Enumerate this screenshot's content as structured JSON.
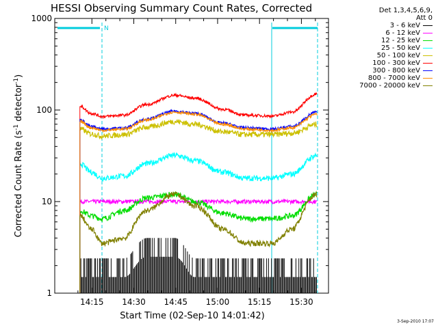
{
  "chart_data": {
    "type": "line",
    "title": "HESSI Observing Summary Count Rates, Corrected",
    "xlabel": "Start Time (02-Sep-10 14:01:42)",
    "ylabel_main": "Corrected Count Rate (s",
    "ylabel_sup1": "-1",
    "ylabel_mid": " detector",
    "ylabel_sup2": "-1",
    "ylabel_end": ")",
    "y_scale": "log",
    "ylim": [
      1,
      1000
    ],
    "x_ticks": [
      "14:15",
      "14:30",
      "14:45",
      "15:00",
      "15:15",
      "15:30"
    ],
    "y_ticks": [
      "1",
      "10",
      "100",
      "1000"
    ],
    "legend_header": [
      "Det 1,3,4,5,6,9,",
      "Att 0"
    ],
    "legend_placement": "top-right-outside",
    "night_marker": "N",
    "series": [
      {
        "name": "3 - 6 keV",
        "color": "#000000",
        "values": [
          1.5,
          1.5,
          1.5,
          1.5,
          2.5,
          2.5,
          1.5,
          1.5,
          1.5,
          1.5,
          1.5,
          1.5
        ]
      },
      {
        "name": "6 - 12 keV",
        "color": "#ff00ff",
        "values": [
          10,
          10,
          10,
          10,
          10,
          10,
          10,
          10,
          10,
          10,
          10,
          10
        ]
      },
      {
        "name": "12 - 25 keV",
        "color": "#00dd00",
        "values": [
          8,
          7,
          6.5,
          8,
          11,
          12,
          10,
          7.5,
          6.5,
          6.5,
          7,
          12
        ]
      },
      {
        "name": "25 - 50 keV",
        "color": "#00ffff",
        "values": [
          26,
          21,
          18,
          19,
          26,
          32,
          28,
          21,
          18,
          18,
          20,
          32
        ]
      },
      {
        "name": "50 - 100 keV",
        "color": "#ccc000",
        "values": [
          62,
          55,
          52,
          54,
          65,
          75,
          70,
          58,
          54,
          54,
          56,
          70
        ]
      },
      {
        "name": "100 - 300 keV",
        "color": "#ff0000",
        "values": [
          110,
          92,
          85,
          88,
          115,
          145,
          135,
          102,
          88,
          86,
          95,
          150
        ]
      },
      {
        "name": "300 - 800 keV",
        "color": "#0000ff",
        "values": [
          78,
          66,
          62,
          64,
          80,
          97,
          92,
          72,
          64,
          62,
          66,
          95
        ]
      },
      {
        "name": "800 - 7000 keV",
        "color": "#ff8c00",
        "values": [
          75,
          64,
          60,
          62,
          78,
          95,
          90,
          70,
          62,
          60,
          64,
          90
        ]
      },
      {
        "name": "7000 - 20000 keV",
        "color": "#808000",
        "values": [
          7,
          5,
          3.5,
          4,
          8,
          12,
          9,
          5,
          3.5,
          3.5,
          5,
          12
        ]
      }
    ],
    "x_minutes": [
      9,
      13,
      17,
      25,
      33,
      43,
      50,
      60,
      68,
      78,
      85,
      94
    ]
  },
  "footer": {
    "date": "3-Sep-2010 17:07"
  }
}
